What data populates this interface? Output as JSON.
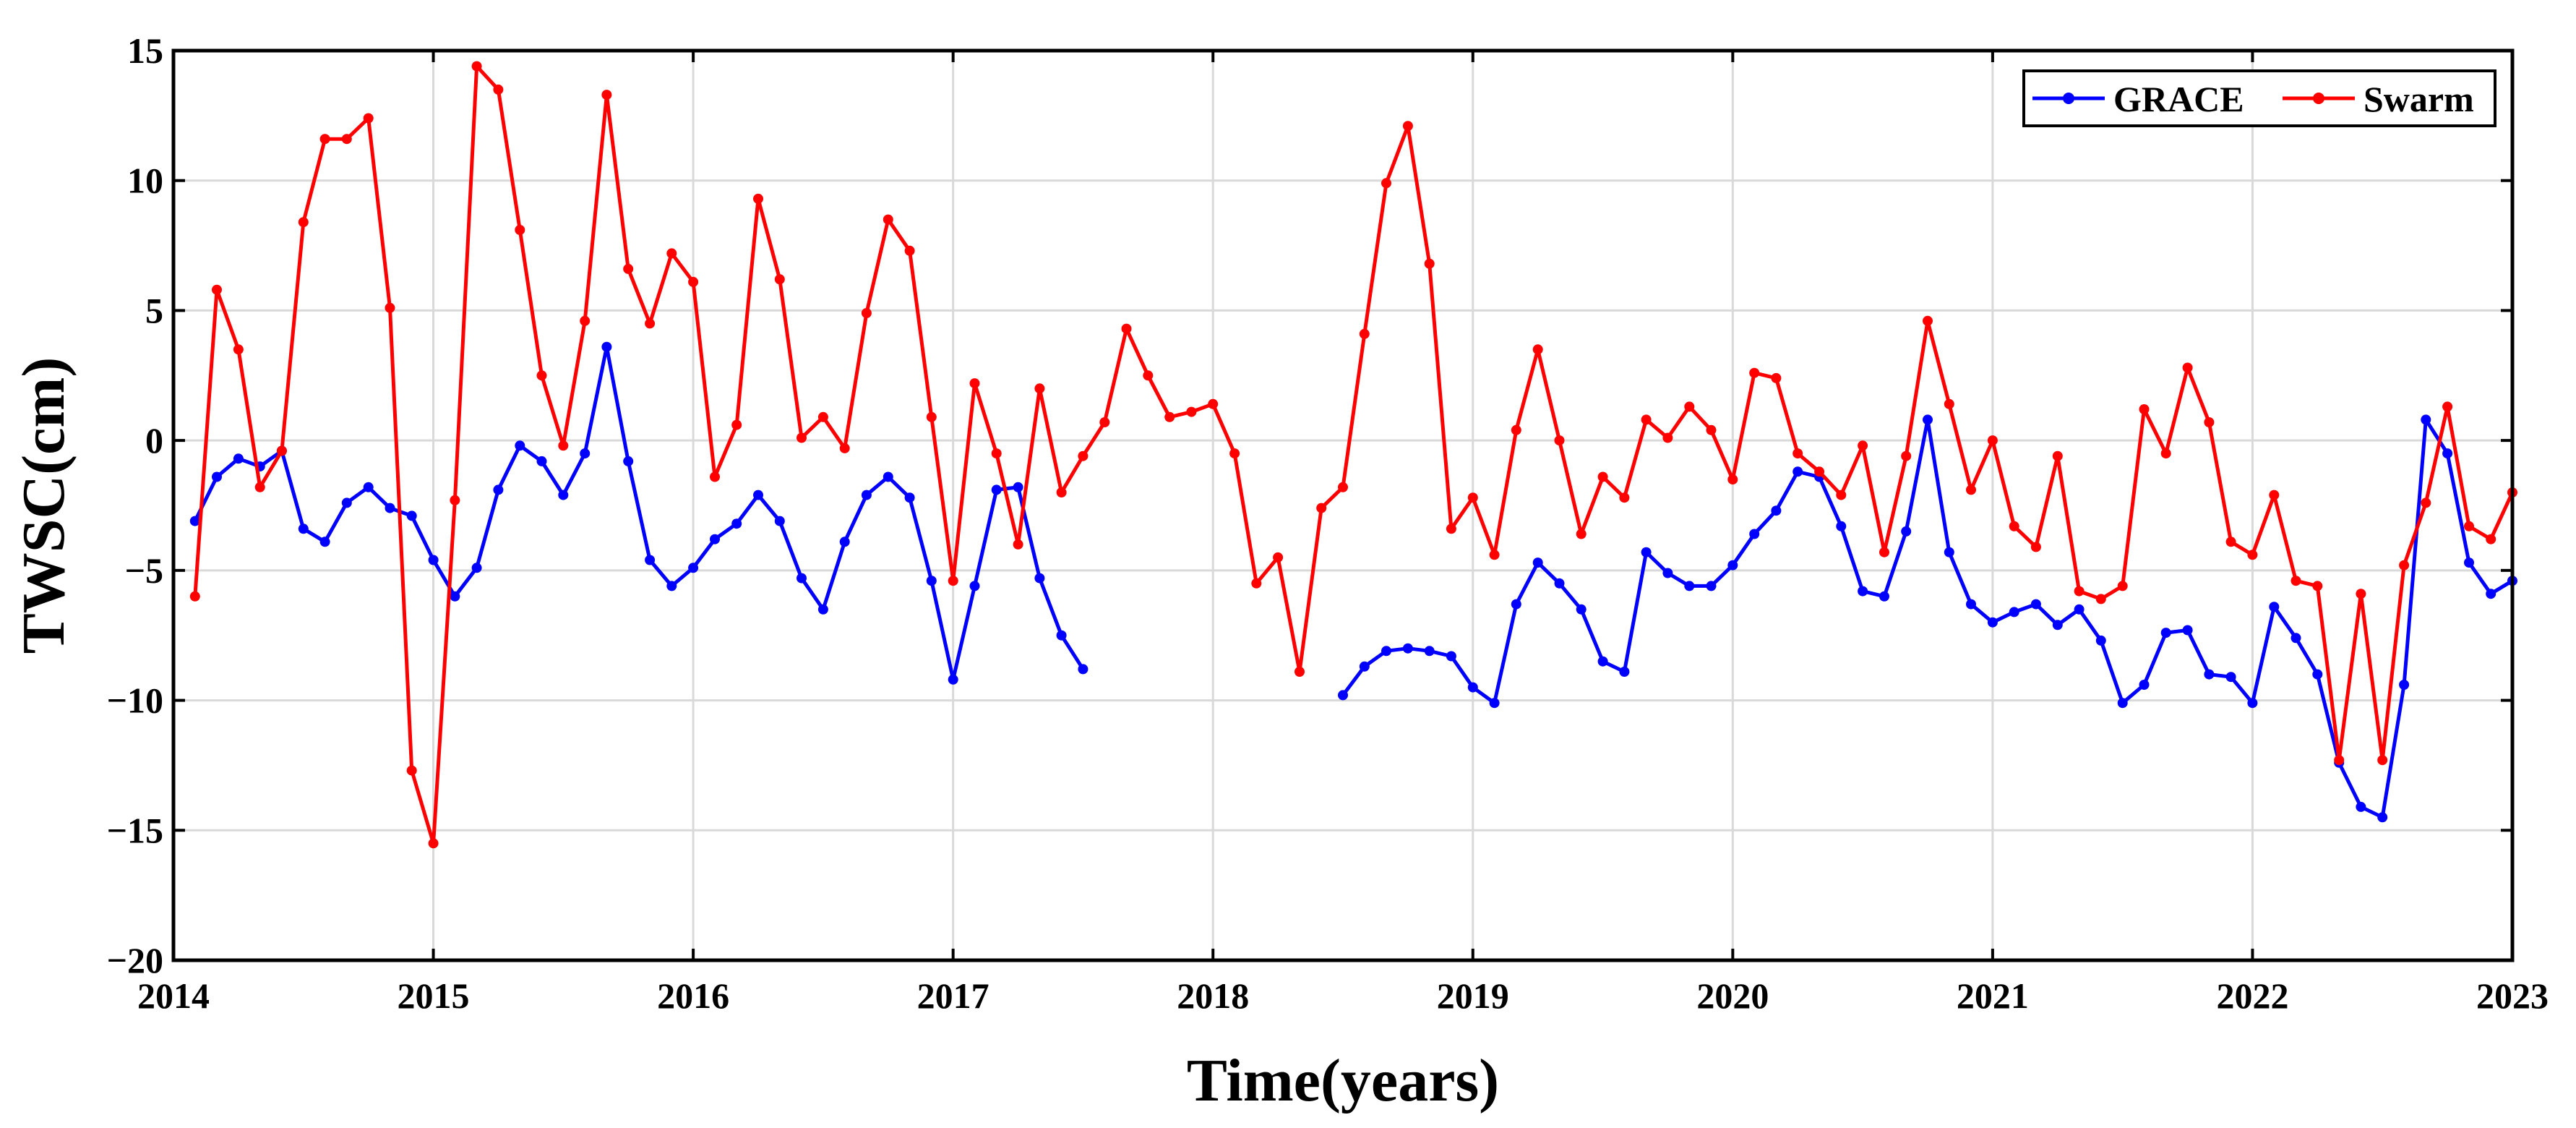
{
  "chart_data": {
    "type": "line",
    "title": "",
    "xlabel": "Time(years)",
    "ylabel": "TWSC(cm)",
    "xlim": [
      2014,
      2023
    ],
    "ylim": [
      -20,
      15
    ],
    "xticks": [
      2014,
      2015,
      2016,
      2017,
      2018,
      2019,
      2020,
      2021,
      2022,
      2023
    ],
    "yticks": [
      -20,
      -15,
      -10,
      -5,
      0,
      5,
      10,
      15
    ],
    "xtick_labels": [
      "2014",
      "2015",
      "2016",
      "2017",
      "2018",
      "2019",
      "2020",
      "2021",
      "2022",
      "2023"
    ],
    "ytick_labels": [
      "−20",
      "−15",
      "−10",
      "−5",
      "0",
      "5",
      "10",
      "15"
    ],
    "grid": true,
    "legend_position": "top-right",
    "series": [
      {
        "name": "GRACE",
        "color": "#0000ff",
        "marker": "dot",
        "x": [
          2014.083,
          2014.167,
          2014.25,
          2014.333,
          2014.417,
          2014.5,
          2014.583,
          2014.667,
          2014.75,
          2014.833,
          2014.917,
          2015.0,
          2015.083,
          2015.167,
          2015.25,
          2015.333,
          2015.417,
          2015.5,
          2015.583,
          2015.667,
          2015.75,
          2015.833,
          2015.917,
          2016.0,
          2016.083,
          2016.167,
          2016.25,
          2016.333,
          2016.417,
          2016.5,
          2016.583,
          2016.667,
          2016.75,
          2016.833,
          2016.917,
          2017.0,
          2017.083,
          2017.167,
          2017.25,
          2017.333,
          2017.417,
          2017.5
        ],
        "values": [
          -3.1,
          -1.4,
          -0.7,
          -1.0,
          -0.4,
          -3.4,
          -3.9,
          -2.4,
          -1.8,
          -2.6,
          -2.9,
          -4.6,
          -6.0,
          -4.9,
          -1.9,
          -0.2,
          -0.8,
          -2.1,
          -0.5,
          3.6,
          -0.8,
          -4.6,
          -5.6,
          -4.9,
          -3.8,
          -3.2,
          -2.1,
          -3.1,
          -5.3,
          -6.5,
          -3.9,
          -2.1,
          -1.4,
          -2.2,
          -5.4,
          -9.2,
          -5.6,
          -1.9,
          -1.8,
          -5.3,
          -7.5,
          -8.8
        ]
      },
      {
        "name": "GRACE",
        "color": "#0000ff",
        "marker": "dot",
        "x": [
          2018.5,
          2018.583,
          2018.667,
          2018.75,
          2018.833,
          2018.917,
          2019.0,
          2019.083,
          2019.167,
          2019.25,
          2019.333,
          2019.417,
          2019.5,
          2019.583,
          2019.667,
          2019.75,
          2019.833,
          2019.917,
          2020.0,
          2020.083,
          2020.167,
          2020.25,
          2020.333,
          2020.417,
          2020.5,
          2020.583,
          2020.667,
          2020.75,
          2020.833,
          2020.917,
          2021.0,
          2021.083,
          2021.167,
          2021.25,
          2021.333,
          2021.417,
          2021.5,
          2021.583,
          2021.667,
          2021.75,
          2021.833,
          2021.917,
          2022.0,
          2022.083,
          2022.167,
          2022.25,
          2022.333,
          2022.417,
          2022.5,
          2022.583,
          2022.667,
          2022.75,
          2022.833,
          2022.917,
          2023.0
        ],
        "values": [
          -9.8,
          -8.7,
          -8.1,
          -8.0,
          -8.1,
          -8.3,
          -9.5,
          -10.1,
          -6.3,
          -4.7,
          -5.5,
          -6.5,
          -8.5,
          -8.9,
          -4.3,
          -5.1,
          -5.6,
          -5.6,
          -4.8,
          -3.6,
          -2.7,
          -1.2,
          -1.4,
          -3.3,
          -5.8,
          -6.0,
          -3.5,
          0.8,
          -4.3,
          -6.3,
          -7.0,
          -6.6,
          -6.3,
          -7.1,
          -6.5,
          -7.7,
          -10.1,
          -9.4,
          -7.4,
          -7.3,
          -9.0,
          -9.1,
          -10.1,
          -6.4,
          -7.6,
          -9.0,
          -12.4,
          -14.1,
          -14.5,
          -9.4,
          0.8,
          -0.5,
          -4.7,
          -5.9,
          -5.4
        ]
      },
      {
        "name": "Swarm",
        "color": "#ff0000",
        "marker": "dot",
        "x": [
          2014.083,
          2014.167,
          2014.25,
          2014.333,
          2014.417,
          2014.5,
          2014.583,
          2014.667,
          2014.75,
          2014.833,
          2014.917,
          2015.0,
          2015.083,
          2015.167,
          2015.25,
          2015.333,
          2015.417,
          2015.5,
          2015.583,
          2015.667,
          2015.75,
          2015.833,
          2015.917,
          2016.0,
          2016.083,
          2016.167,
          2016.25,
          2016.333,
          2016.417,
          2016.5,
          2016.583,
          2016.667,
          2016.75,
          2016.833,
          2016.917,
          2017.0,
          2017.083,
          2017.167,
          2017.25,
          2017.333,
          2017.417,
          2017.5,
          2017.583,
          2017.667,
          2017.75,
          2017.833,
          2017.917,
          2018.0,
          2018.083,
          2018.167,
          2018.25,
          2018.333,
          2018.417,
          2018.5,
          2018.583,
          2018.667,
          2018.75,
          2018.833,
          2018.917,
          2019.0,
          2019.083,
          2019.167,
          2019.25,
          2019.333,
          2019.417,
          2019.5,
          2019.583,
          2019.667,
          2019.75,
          2019.833,
          2019.917,
          2020.0,
          2020.083,
          2020.167,
          2020.25,
          2020.333,
          2020.417,
          2020.5,
          2020.583,
          2020.667,
          2020.75,
          2020.833,
          2020.917,
          2021.0,
          2021.083,
          2021.167,
          2021.25,
          2021.333,
          2021.417,
          2021.5,
          2021.583,
          2021.667,
          2021.75,
          2021.833,
          2021.917,
          2022.0,
          2022.083,
          2022.167,
          2022.25,
          2022.333,
          2022.417,
          2022.5,
          2022.583,
          2022.667,
          2022.75,
          2022.833,
          2022.917,
          2023.0
        ],
        "values": [
          -6.0,
          5.8,
          3.5,
          -1.8,
          -0.4,
          8.4,
          11.6,
          11.6,
          12.4,
          5.1,
          -12.7,
          -15.5,
          -2.3,
          14.4,
          13.5,
          8.1,
          2.5,
          -0.2,
          4.6,
          13.3,
          6.6,
          4.5,
          7.2,
          6.1,
          -1.4,
          0.6,
          9.3,
          6.2,
          0.1,
          0.9,
          -0.3,
          4.9,
          8.5,
          7.3,
          0.9,
          -5.4,
          2.2,
          -0.5,
          -4.0,
          2.0,
          -2.0,
          -0.6,
          0.7,
          4.3,
          2.5,
          0.9,
          1.1,
          1.4,
          -0.5,
          -5.5,
          -4.5,
          -8.9,
          -2.6,
          -1.8,
          4.1,
          9.9,
          12.1,
          6.8,
          -3.4,
          -2.2,
          -4.4,
          0.4,
          3.5,
          0.0,
          -3.6,
          -1.4,
          -2.2,
          0.8,
          0.1,
          1.3,
          0.4,
          -1.5,
          2.6,
          2.4,
          -0.5,
          -1.2,
          -2.1,
          -0.2,
          -4.3,
          -0.6,
          4.6,
          1.4,
          -1.9,
          0.0,
          -3.3,
          -4.1,
          -0.6,
          -5.8,
          -6.1,
          -5.6,
          1.2,
          -0.5,
          2.8,
          0.7,
          -3.9,
          -4.4,
          -2.1,
          -5.4,
          -5.6,
          -12.3,
          -5.9,
          -12.3,
          -4.8,
          -2.4,
          1.3,
          -3.3,
          -3.8,
          -2.0
        ]
      }
    ]
  }
}
